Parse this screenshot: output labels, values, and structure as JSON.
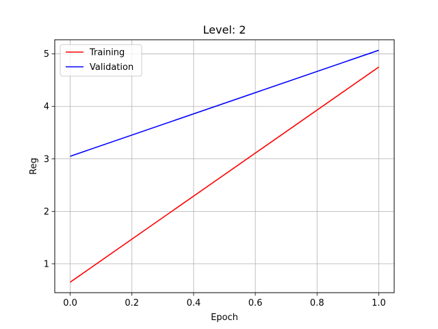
{
  "chart_data": {
    "type": "line",
    "title": "Level: 2",
    "xlabel": "Epoch",
    "ylabel": "Reg",
    "x": [
      0.0,
      1.0
    ],
    "xlim": [
      -0.05,
      1.05
    ],
    "ylim": [
      0.45,
      5.27
    ],
    "xticks": [
      0.0,
      0.2,
      0.4,
      0.6,
      0.8,
      1.0
    ],
    "xtick_labels": [
      "0.0",
      "0.2",
      "0.4",
      "0.6",
      "0.8",
      "1.0"
    ],
    "yticks": [
      1,
      2,
      3,
      4,
      5
    ],
    "ytick_labels": [
      "1",
      "2",
      "3",
      "4",
      "5"
    ],
    "grid": true,
    "legend_position": "top-left",
    "series": [
      {
        "name": "Training",
        "color": "#ff0000",
        "values": [
          0.65,
          4.75
        ]
      },
      {
        "name": "Validation",
        "color": "#0000ff",
        "values": [
          3.05,
          5.07
        ]
      }
    ]
  }
}
